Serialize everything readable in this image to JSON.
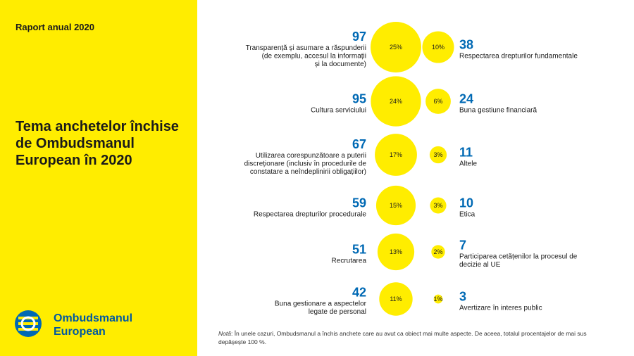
{
  "sidebar": {
    "report_label": "Raport anual 2020",
    "title": "Tema anchetelor închise de Ombudsmanul European în 2020",
    "org_name_line1": "Ombudsmanul",
    "org_name_line2": "European",
    "brand_color": "#FFED00",
    "accent_color": "#0069B4"
  },
  "chart_data": {
    "type": "bubble",
    "left_column": [
      {
        "value": 97,
        "percent": "25%",
        "label": [
          "Transparență și asumare a răspunderii",
          "(de exemplu, accesul la informații",
          "și la documente)"
        ]
      },
      {
        "value": 95,
        "percent": "24%",
        "label": [
          "Cultura serviciului"
        ]
      },
      {
        "value": 67,
        "percent": "17%",
        "label": [
          "Utilizarea corespunzătoare a puterii",
          "discreționare (inclusiv în procedurile de",
          "constatare a neîndeplinirii obligațiilor)"
        ]
      },
      {
        "value": 59,
        "percent": "15%",
        "label": [
          "Respectarea drepturilor procedurale"
        ]
      },
      {
        "value": 51,
        "percent": "13%",
        "label": [
          "Recrutarea"
        ]
      },
      {
        "value": 42,
        "percent": "11%",
        "label": [
          "Buna gestionare a aspectelor",
          "legate de personal"
        ]
      }
    ],
    "right_column": [
      {
        "value": 38,
        "percent": "10%",
        "label": [
          "Respectarea drepturilor fundamentale"
        ]
      },
      {
        "value": 24,
        "percent": "6%",
        "label": [
          "Buna gestiune financiară"
        ]
      },
      {
        "value": 11,
        "percent": "3%",
        "label": [
          "Altele"
        ]
      },
      {
        "value": 10,
        "percent": "3%",
        "label": [
          "Etica"
        ]
      },
      {
        "value": 7,
        "percent": "2%",
        "label": [
          "Participarea cetățenilor la procesul de",
          "decizie al UE"
        ]
      },
      {
        "value": 3,
        "percent": "1%",
        "label": [
          "Avertizare în interes public"
        ]
      }
    ],
    "bubble_color": "#FFED00",
    "number_color": "#0069B4"
  },
  "note": {
    "prefix": "Notă",
    "text": ": În unele cazuri, Ombudsmanul a închis anchete care au avut ca obiect mai multe aspecte. De aceea, totalul procentajelor de mai sus depășește 100 %."
  }
}
